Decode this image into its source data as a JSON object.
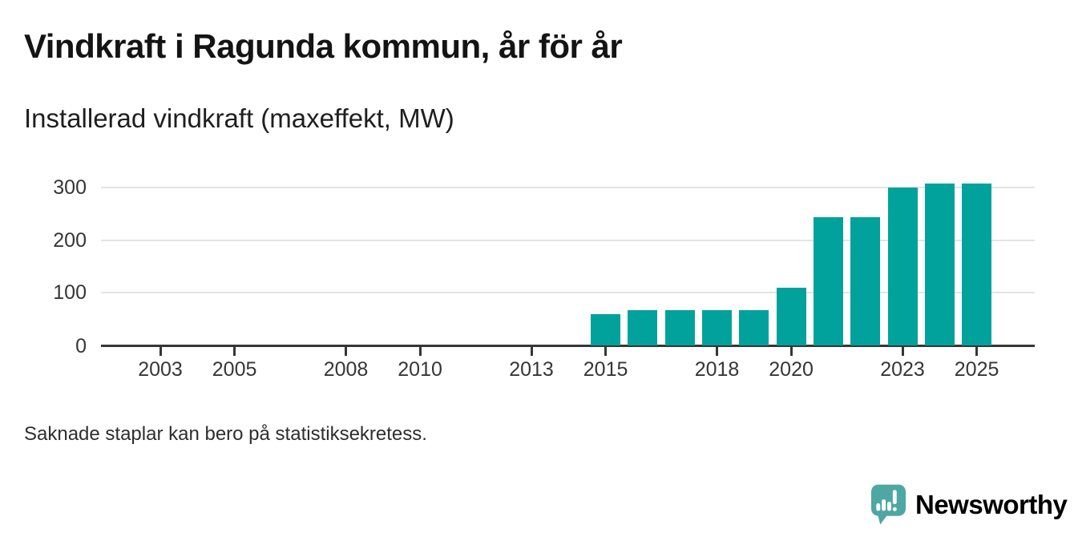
{
  "header": {
    "title": "Vindkraft i Ragunda kommun, år för år",
    "subtitle": "Installerad vindkraft (maxeffekt, MW)"
  },
  "footnote": "Saknade staplar kan bero på statistiksekretess.",
  "branding": {
    "logo_text": "Newsworthy",
    "logo_icon": "newsworthy-speech-bubble-bar-chart-icon",
    "logo_text_color": "#3e9b98",
    "logo_icon_color": "#4fa7a3"
  },
  "chart_data": {
    "type": "bar",
    "title": "Vindkraft i Ragunda kommun, år för år",
    "subtitle": "Installerad vindkraft (maxeffekt, MW)",
    "xlabel": "",
    "ylabel": "Installerad vindkraft (maxeffekt, MW)",
    "x": [
      2015,
      2016,
      2017,
      2018,
      2019,
      2020,
      2021,
      2022,
      2023,
      2024,
      2025
    ],
    "values": [
      60,
      67,
      67,
      67,
      67,
      110,
      243,
      243,
      300,
      308,
      308
    ],
    "x_ticks": [
      2003,
      2005,
      2008,
      2010,
      2013,
      2015,
      2018,
      2020,
      2023,
      2025
    ],
    "y_ticks": [
      0,
      100,
      200,
      300
    ],
    "x_range_years": [
      2001.4,
      2026.6
    ],
    "ylim": [
      0,
      320
    ],
    "bar_color": "#00a29b",
    "grid": true,
    "gridline_color": "#e4e4e4",
    "axis_color": "#363636",
    "legend": "none",
    "note": "No bars shown for 2001-2014 (missing bars may be due to statistical secrecy)"
  }
}
